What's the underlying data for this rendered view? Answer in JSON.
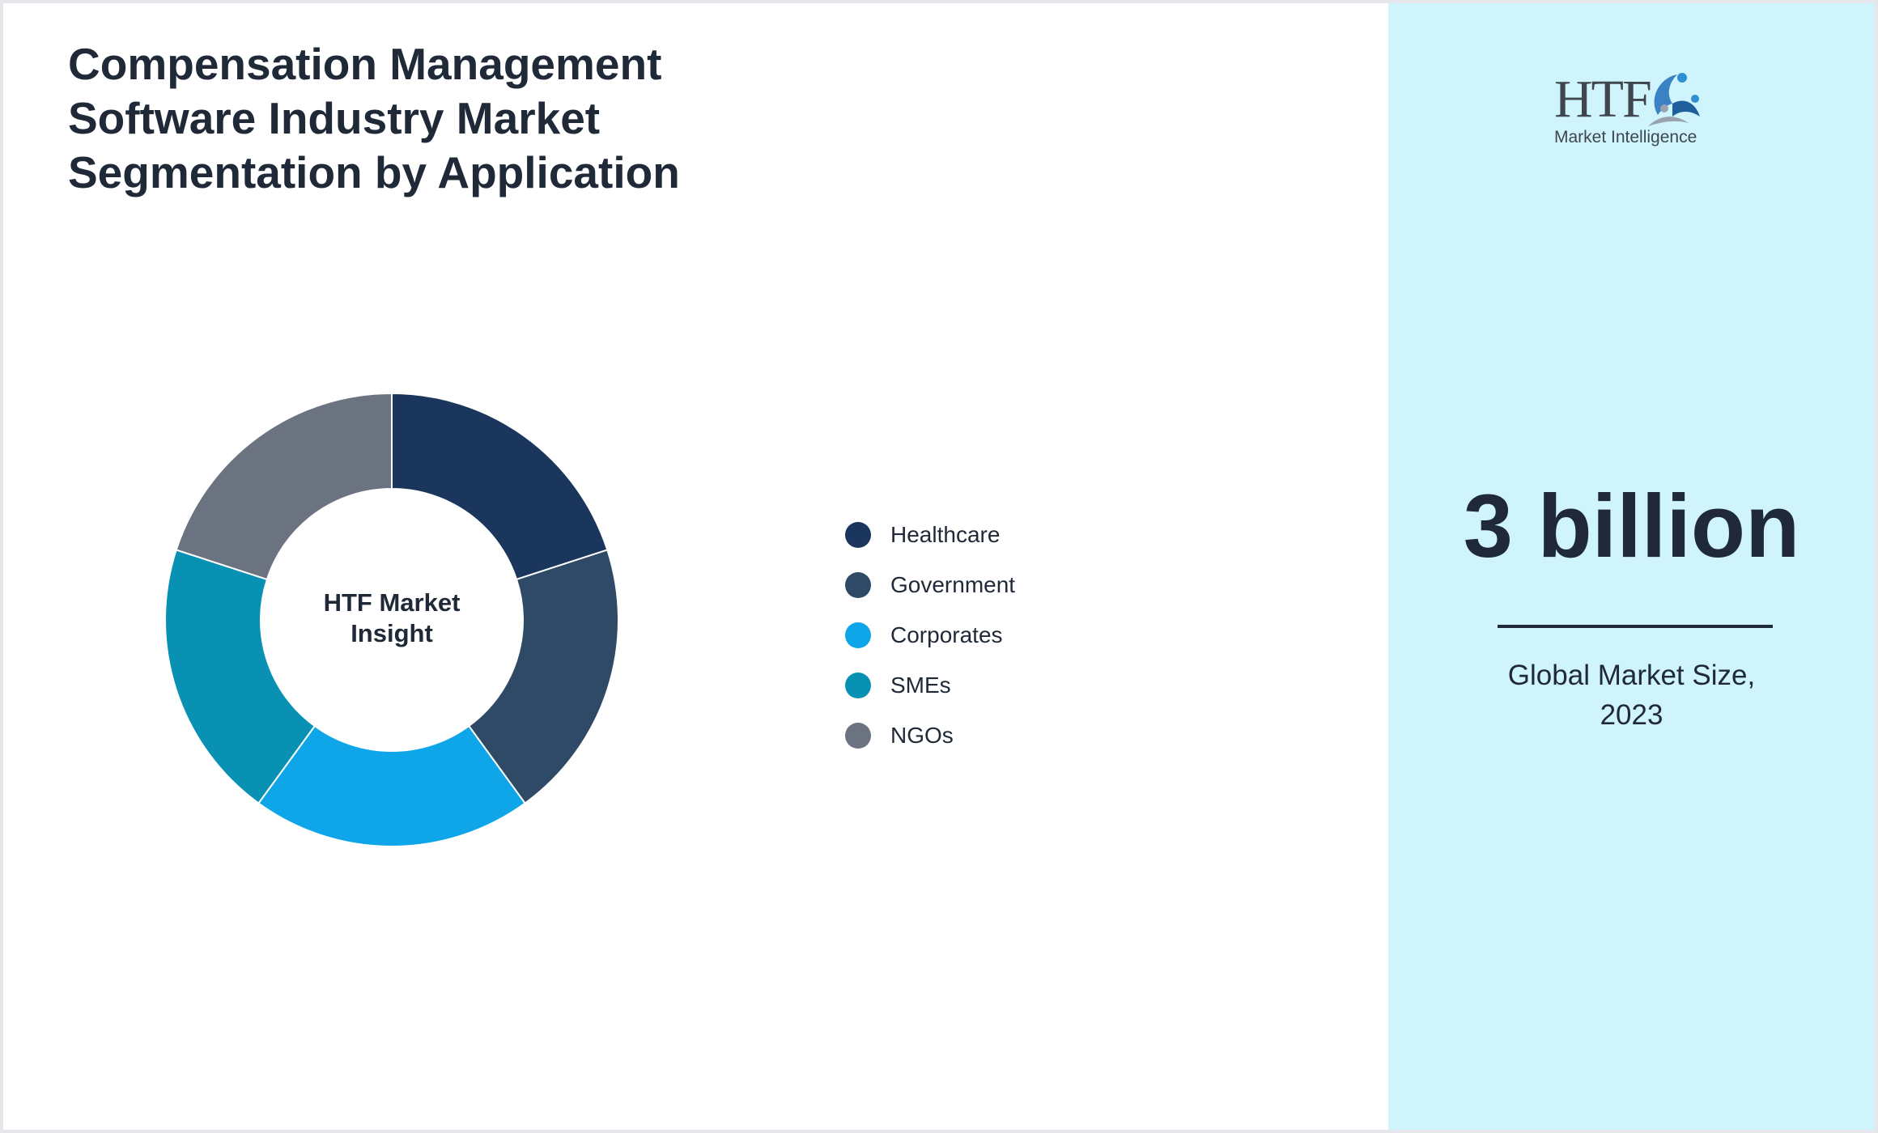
{
  "title_lines": [
    "Compensation Management",
    "Software Industry Market",
    "Segmentation by Application"
  ],
  "center_label_lines": [
    "HTF Market",
    "Insight"
  ],
  "logo": {
    "wordmark": "HTF",
    "tagline": "Market Intelligence",
    "icon": "htf-swirl-figures-icon"
  },
  "market_size": {
    "value": "3 billion",
    "caption_lines": [
      "Global Market Size,",
      "2023"
    ]
  },
  "chart_data": {
    "type": "pie",
    "variant": "donut",
    "categories": [
      "Healthcare",
      "Government",
      "Corporates",
      "SMEs",
      "NGOs"
    ],
    "values": [
      20,
      20,
      20,
      20,
      20
    ],
    "colors": [
      "#1b365d",
      "#2e4a66",
      "#0ea5e9",
      "#0891b2",
      "#6b7280"
    ],
    "legend": "right",
    "title": ""
  },
  "colors": {
    "panel_background": "#cff4fc",
    "text": "#1f2937"
  }
}
